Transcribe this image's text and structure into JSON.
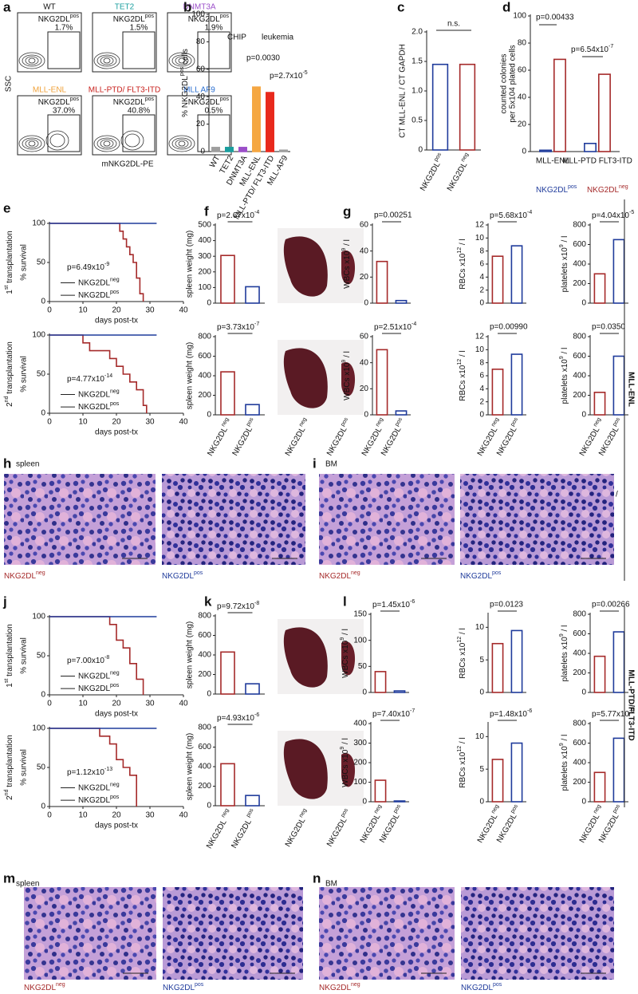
{
  "flow": {
    "panel": "a",
    "ylabel": "SSC",
    "xlabel": "mNKG2DL-PE",
    "plots": [
      {
        "title": "WT",
        "color": "#111111",
        "gate": [
          "NKG2DL",
          "pos"
        ],
        "percent": "1.7%"
      },
      {
        "title": "TET2",
        "color": "#1a9e9e",
        "gate": [
          "NKG2DL",
          "pos"
        ],
        "percent": "1.5%"
      },
      {
        "title": "DNMT3A",
        "color": "#9b4fc9",
        "gate": [
          "NKG2DL",
          "pos"
        ],
        "percent": "1.9%"
      },
      {
        "title": "MLL-ENL",
        "color": "#f0a23a",
        "gate": [
          "NKG2DL",
          "pos"
        ],
        "percent": "37.0%"
      },
      {
        "title": "MLL-PTD/ FLT3-ITD",
        "color": "#c8201c",
        "gate": [
          "NKG2DL",
          "pos"
        ],
        "percent": "40.8%"
      },
      {
        "title": "MLL AF9",
        "color": "#2b6fd1",
        "gate": [
          "NKG2DL",
          "pos"
        ],
        "percent": "0.5%"
      }
    ]
  },
  "chart_data": [
    {
      "type": "bar",
      "panel": "b",
      "ylabel": [
        "% NKG2DL",
        "pos",
        " cells"
      ],
      "categories": [
        "WT",
        "TET2",
        "DNMT3A",
        "MLL-ENL",
        "MLL-PTD/ FLT3-ITD",
        "MLL-AF9"
      ],
      "values": [
        3,
        3,
        3,
        47,
        43,
        1
      ],
      "colors": [
        "#9e9e9e",
        "#1a9e9e",
        "#9b4fc9",
        "#f5a742",
        "#e8291c",
        "#9e9e9e"
      ],
      "filled": true,
      "ylim": [
        0,
        100
      ],
      "yticks": [
        0,
        20,
        40,
        60,
        80,
        100
      ],
      "annotations": [
        "CHIP",
        "leukemia",
        "p=0.0030",
        [
          "p=2.7x10",
          "-5"
        ]
      ]
    },
    {
      "type": "bar",
      "panel": "c",
      "ylabel": "CT MLL-ENL / CT GAPDH",
      "categories": [
        [
          "NKG2DL",
          "pos"
        ],
        [
          "NKG2DL",
          "neg"
        ]
      ],
      "values": [
        1.45,
        1.45
      ],
      "colors": [
        "#1f3b9b",
        "#a52a2a"
      ],
      "ylim": [
        0,
        2
      ],
      "yticks": [
        0,
        0.5,
        {
          "value": 1,
          "label": "1.0"
        },
        1.5,
        {
          "value": 2,
          "label": "2.0"
        }
      ],
      "annotations": [
        "n.s."
      ]
    },
    {
      "type": "bar",
      "panel": "d",
      "ylabel_lines": [
        "counted colonies",
        "per 5x104 plated cells"
      ],
      "categories": [
        "MLL-ENL",
        "MLL-PTD FLT3-ITD"
      ],
      "series": [
        {
          "name": [
            "NKG2DL",
            "pos"
          ],
          "color": "#1f3b9b",
          "values": [
            1,
            6
          ]
        },
        {
          "name": [
            "NKG2DL",
            "neg"
          ],
          "color": "#a52a2a",
          "values": [
            68,
            57
          ]
        }
      ],
      "ylim": [
        0,
        100
      ],
      "yticks": [
        0,
        20,
        40,
        60,
        80,
        100
      ],
      "annotations": [
        "p=0.00433",
        [
          "p=6.54x10",
          "-7"
        ]
      ]
    },
    {
      "type": "line",
      "panel": "e",
      "side_label": [
        "1",
        "st",
        " transplantation"
      ],
      "ylabel": "% survival",
      "xlabel": "days post-tx",
      "xlim": [
        0,
        40
      ],
      "xticks": [
        0,
        10,
        20,
        30,
        40
      ],
      "ylim": [
        0,
        100
      ],
      "yticks": [
        0,
        50,
        100
      ],
      "annotations": [
        [
          "p=6.49x10",
          "-9"
        ]
      ],
      "series": [
        {
          "name": [
            "NKG2DL",
            "neg"
          ],
          "color": "#a52a2a",
          "x": [
            0,
            21,
            22,
            23,
            24,
            25,
            26,
            27,
            28
          ],
          "values": [
            100,
            90,
            80,
            70,
            60,
            50,
            30,
            10,
            0
          ]
        },
        {
          "name": [
            "NKG2DL",
            "pos"
          ],
          "color": "#1f3b9b",
          "x": [
            0,
            32
          ],
          "values": [
            100,
            100
          ]
        }
      ]
    },
    {
      "type": "line",
      "side_label": [
        "2",
        "nd",
        " transplantation"
      ],
      "ylabel": "% survival",
      "xlabel": "days post-tx",
      "xlim": [
        0,
        40
      ],
      "xticks": [
        0,
        10,
        20,
        30,
        40
      ],
      "ylim": [
        0,
        100
      ],
      "yticks": [
        0,
        50,
        100
      ],
      "annotations": [
        [
          "p=4.77x10",
          "-14"
        ]
      ],
      "series": [
        {
          "name": [
            "NKG2DL",
            "neg"
          ],
          "color": "#a52a2a",
          "x": [
            0,
            10,
            12,
            18,
            20,
            22,
            24,
            26,
            28,
            29
          ],
          "values": [
            100,
            90,
            80,
            70,
            60,
            50,
            40,
            30,
            10,
            0
          ]
        },
        {
          "name": [
            "NKG2DL",
            "pos"
          ],
          "color": "#1f3b9b",
          "x": [
            0,
            32
          ],
          "values": [
            100,
            100
          ]
        }
      ]
    },
    {
      "type": "bar",
      "panel": "f",
      "ylabel": "spleen weight (mg)",
      "categories": [
        null,
        null
      ],
      "values": [
        305,
        105
      ],
      "colors": [
        "#a52a2a",
        "#1f3b9b"
      ],
      "ylim": [
        0,
        500
      ],
      "yticks": [
        0,
        100,
        200,
        300,
        400,
        500
      ],
      "annotations": [
        [
          "p=2.67x10",
          "-4"
        ]
      ]
    },
    {
      "type": "bar",
      "ylabel": "spleen weight (mg)",
      "categories": [
        [
          "NKG2DL",
          "neg"
        ],
        [
          "NKG2DL",
          "pos"
        ]
      ],
      "values": [
        440,
        105
      ],
      "colors": [
        "#a52a2a",
        "#1f3b9b"
      ],
      "ylim": [
        0,
        800
      ],
      "yticks": [
        0,
        200,
        400,
        600,
        800
      ],
      "annotations": [
        [
          "p=3.73x10",
          "-7"
        ]
      ],
      "photo_labels": [
        [
          "NKG2DL",
          "neg"
        ],
        [
          "NKG2DL",
          "pos"
        ]
      ]
    },
    {
      "type": "bar",
      "panel": "g",
      "ylabel": [
        "WBCs x10",
        "9",
        " / l"
      ],
      "categories": [
        null,
        null
      ],
      "values": [
        32,
        2
      ],
      "colors": [
        "#a52a2a",
        "#1f3b9b"
      ],
      "ylim": [
        0,
        60
      ],
      "yticks": [
        0,
        20,
        40,
        60
      ],
      "annotations": [
        "p=0.00251"
      ]
    },
    {
      "type": "bar",
      "ylabel": [
        "RBCs x10",
        "12",
        " / l"
      ],
      "categories": [
        null,
        null
      ],
      "values": [
        7.2,
        8.8
      ],
      "colors": [
        "#a52a2a",
        "#1f3b9b"
      ],
      "ylim": [
        0,
        12
      ],
      "yticks": [
        0,
        2,
        4,
        6,
        8,
        10,
        12
      ],
      "annotations": [
        [
          "p=5.68x10",
          "-4"
        ]
      ]
    },
    {
      "type": "bar",
      "ylabel": [
        "platelets x10",
        "9",
        " / l"
      ],
      "categories": [
        null,
        null
      ],
      "values": [
        300,
        650
      ],
      "colors": [
        "#a52a2a",
        "#1f3b9b"
      ],
      "ylim": [
        0,
        800
      ],
      "yticks": [
        0,
        200,
        400,
        600,
        800
      ],
      "annotations": [
        [
          "p=4.04x10",
          "-5"
        ]
      ]
    },
    {
      "type": "bar",
      "ylabel": [
        "WBCs x10",
        "9",
        " / l"
      ],
      "categories": [
        [
          "NKG2DL",
          "neg"
        ],
        [
          "NKG2DL",
          "pos"
        ]
      ],
      "values": [
        50,
        3
      ],
      "colors": [
        "#a52a2a",
        "#1f3b9b"
      ],
      "ylim": [
        0,
        60
      ],
      "yticks": [
        0,
        20,
        40,
        60
      ],
      "annotations": [
        [
          "p=2.51x10",
          "-4"
        ]
      ]
    },
    {
      "type": "bar",
      "ylabel": [
        "RBCs x10",
        "12",
        " / l"
      ],
      "categories": [
        [
          "NKG2DL",
          "neg"
        ],
        [
          "NKG2DL",
          "pos"
        ]
      ],
      "values": [
        7,
        9.3
      ],
      "colors": [
        "#a52a2a",
        "#1f3b9b"
      ],
      "ylim": [
        0,
        12
      ],
      "yticks": [
        0,
        2,
        4,
        6,
        8,
        10,
        12
      ],
      "annotations": [
        "p=0.00990"
      ]
    },
    {
      "type": "bar",
      "ylabel": [
        "platelets x10",
        "9",
        " / l"
      ],
      "categories": [
        [
          "NKG2DL",
          "neg"
        ],
        [
          "NKG2DL",
          "pos"
        ]
      ],
      "values": [
        230,
        600
      ],
      "colors": [
        "#a52a2a",
        "#1f3b9b"
      ],
      "ylim": [
        0,
        800
      ],
      "yticks": [
        0,
        200,
        400,
        600,
        800
      ],
      "annotations": [
        "p=0.0350"
      ]
    },
    {
      "type": "line",
      "panel": "j",
      "side_label": [
        "1",
        "st",
        " transplantation"
      ],
      "ylabel": "% survival",
      "xlabel": "days post-tx",
      "xlim": [
        0,
        40
      ],
      "xticks": [
        0,
        10,
        20,
        30,
        40
      ],
      "ylim": [
        0,
        100
      ],
      "yticks": [
        0,
        50,
        100
      ],
      "annotations": [
        [
          "p=7.00x10",
          "-8"
        ]
      ],
      "series": [
        {
          "name": [
            "NKG2DL",
            "neg"
          ],
          "color": "#a52a2a",
          "x": [
            0,
            18,
            20,
            22,
            24,
            26,
            28
          ],
          "values": [
            100,
            90,
            70,
            60,
            40,
            20,
            0
          ]
        },
        {
          "name": [
            "NKG2DL",
            "pos"
          ],
          "color": "#1f3b9b",
          "x": [
            0,
            32
          ],
          "values": [
            100,
            100
          ]
        }
      ]
    },
    {
      "type": "line",
      "side_label": [
        "2",
        "nd",
        " transplantation"
      ],
      "ylabel": "% survival",
      "xlabel": "days post-tx",
      "xlim": [
        0,
        40
      ],
      "xticks": [
        0,
        10,
        20,
        30,
        40
      ],
      "ylim": [
        0,
        100
      ],
      "yticks": [
        0,
        50,
        100
      ],
      "annotations": [
        [
          "p=1.12x10",
          "-13"
        ]
      ],
      "series": [
        {
          "name": [
            "NKG2DL",
            "neg"
          ],
          "color": "#a52a2a",
          "x": [
            0,
            15,
            18,
            20,
            22,
            24,
            26
          ],
          "values": [
            100,
            90,
            80,
            60,
            50,
            40,
            0
          ]
        },
        {
          "name": [
            "NKG2DL",
            "pos"
          ],
          "color": "#1f3b9b",
          "x": [
            0,
            32
          ],
          "values": [
            100,
            100
          ]
        }
      ]
    },
    {
      "type": "bar",
      "panel": "k",
      "ylabel": "spleen weight (mg)",
      "categories": [
        null,
        null
      ],
      "values": [
        430,
        105
      ],
      "colors": [
        "#a52a2a",
        "#1f3b9b"
      ],
      "ylim": [
        0,
        800
      ],
      "yticks": [
        0,
        200,
        400,
        600,
        800
      ],
      "annotations": [
        [
          "p=9.72x10",
          "-8"
        ]
      ]
    },
    {
      "type": "bar",
      "ylabel": "spleen weight (mg)",
      "categories": [
        [
          "NKG2DL ",
          "neg"
        ],
        [
          "NKG2DL ",
          "pos"
        ]
      ],
      "values": [
        430,
        105
      ],
      "colors": [
        "#a52a2a",
        "#1f3b9b"
      ],
      "ylim": [
        0,
        800
      ],
      "yticks": [
        0,
        200,
        400,
        600,
        800
      ],
      "annotations": [
        [
          "p=4.93x10",
          "-6"
        ]
      ],
      "photo_labels": [
        [
          "NKG2DL",
          "neg"
        ],
        [
          "NKG2DL",
          "pos"
        ]
      ]
    },
    {
      "type": "bar",
      "panel": "l",
      "ylabel": [
        "WBCs x10",
        "9",
        " / l"
      ],
      "categories": [
        null,
        null
      ],
      "values": [
        40,
        3
      ],
      "colors": [
        "#a52a2a",
        "#1f3b9b"
      ],
      "ylim": [
        0,
        150
      ],
      "yticks": [
        0,
        50,
        100,
        150
      ],
      "annotations": [
        [
          "p=1.45x10",
          "-6"
        ]
      ]
    },
    {
      "type": "bar",
      "ylabel": [
        "RBCs x10",
        "12",
        " / l"
      ],
      "categories": [
        null,
        null
      ],
      "values": [
        7.5,
        9.5
      ],
      "colors": [
        "#a52a2a",
        "#1f3b9b"
      ],
      "ylim": [
        0,
        12
      ],
      "yticks": [
        0,
        5,
        10
      ],
      "annotations": [
        "p=0.0123"
      ]
    },
    {
      "type": "bar",
      "ylabel": [
        "platelets x10",
        "9",
        " / l"
      ],
      "categories": [
        null,
        null
      ],
      "values": [
        370,
        620
      ],
      "colors": [
        "#a52a2a",
        "#1f3b9b"
      ],
      "ylim": [
        0,
        800
      ],
      "yticks": [
        0,
        200,
        400,
        600,
        800
      ],
      "annotations": [
        "p=0.00266"
      ]
    },
    {
      "type": "bar",
      "ylabel": [
        "WBCs x10",
        "9",
        " / l"
      ],
      "categories": [
        [
          "NKG2DL",
          "neg"
        ],
        [
          "NKG2DL",
          "pos"
        ]
      ],
      "values": [
        110,
        4
      ],
      "colors": [
        "#a52a2a",
        "#1f3b9b"
      ],
      "ylim": [
        0,
        400
      ],
      "yticks": [
        0,
        100,
        200,
        300,
        400
      ],
      "annotations": [
        [
          "p=7.40x10",
          "-7"
        ]
      ]
    },
    {
      "type": "bar",
      "ylabel": [
        "RBCs x10",
        "12",
        " / l"
      ],
      "categories": [
        [
          "NKG2DL",
          "neg"
        ],
        [
          "NKG2DL",
          "pos"
        ]
      ],
      "values": [
        6.5,
        9
      ],
      "colors": [
        "#a52a2a",
        "#1f3b9b"
      ],
      "ylim": [
        0,
        12
      ],
      "yticks": [
        0,
        5,
        10
      ],
      "annotations": [
        [
          "p=1.48x10",
          "-6"
        ]
      ]
    },
    {
      "type": "bar",
      "ylabel": [
        "platelets x10",
        "9",
        " / l"
      ],
      "categories": [
        [
          "NKG2DL",
          "neg"
        ],
        [
          "NKG2DL",
          "pos"
        ]
      ],
      "values": [
        300,
        650
      ],
      "colors": [
        "#a52a2a",
        "#1f3b9b"
      ],
      "ylim": [
        0,
        800
      ],
      "yticks": [
        0,
        200,
        400,
        600,
        800
      ],
      "annotations": [
        [
          "p=5.77x10",
          "-8"
        ]
      ]
    }
  ],
  "histology": [
    {
      "panel": "h",
      "tissue": "spleen",
      "captions": [
        [
          "NKG2DL",
          "neg"
        ],
        [
          "NKG2DL",
          "pos"
        ]
      ],
      "colors": [
        "#a52a2a",
        "#1f3b9b"
      ]
    },
    {
      "panel": "i",
      "tissue": "BM",
      "captions": [
        [
          "NKG2DL",
          "neg"
        ],
        [
          "NKG2DL",
          "pos"
        ]
      ],
      "colors": [
        "#a52a2a",
        "#1f3b9b"
      ]
    },
    {
      "panel": "m",
      "tissue": "spleen",
      "captions": [
        [
          "NKG2DL",
          "neg"
        ],
        [
          "NKG2DL",
          "pos"
        ]
      ],
      "colors": [
        "#a52a2a",
        "#1f3b9b"
      ]
    },
    {
      "panel": "n",
      "tissue": "BM",
      "captions": [
        [
          "NKG2DL",
          "neg"
        ],
        [
          "NKG2DL",
          "pos"
        ]
      ],
      "colors": [
        "#a52a2a",
        "#1f3b9b"
      ]
    }
  ],
  "side_labels": [
    "MLL-ENL",
    "MLL-PTD/FLT3-ITD"
  ],
  "slash": "/"
}
